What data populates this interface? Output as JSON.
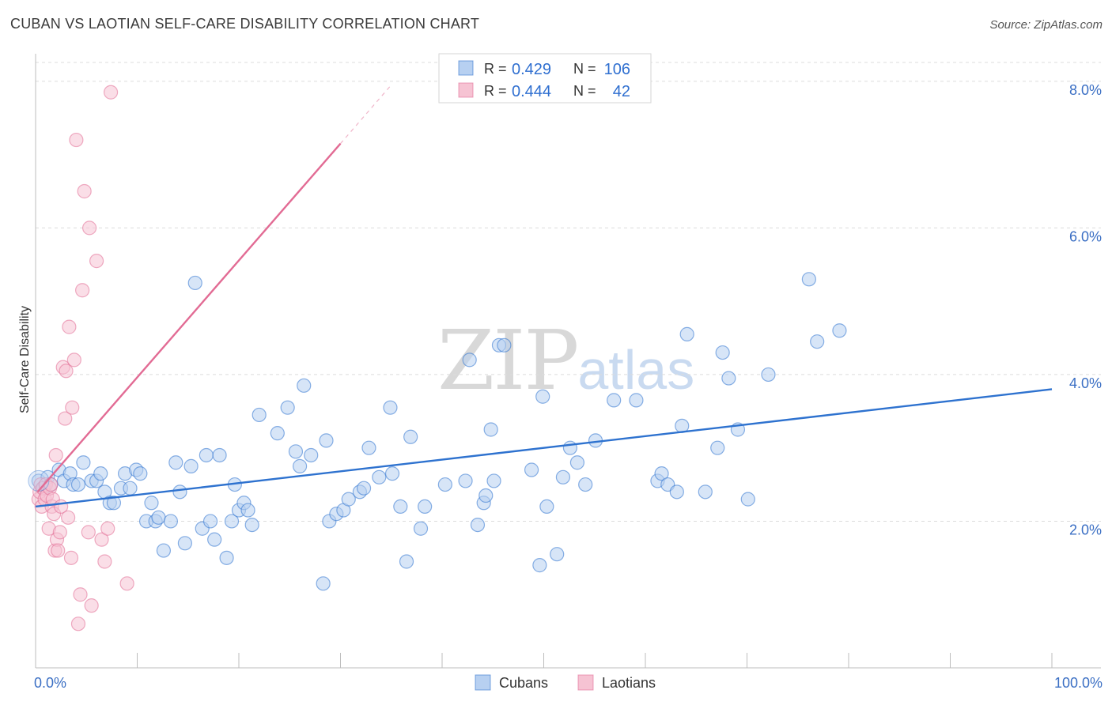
{
  "header": {
    "title": "CUBAN VS LAOTIAN SELF-CARE DISABILITY CORRELATION CHART",
    "source": "Source: ZipAtlas.com"
  },
  "watermark": {
    "zip": "ZIP",
    "atlas": "atlas"
  },
  "colors": {
    "cubans": "#2e72cf",
    "cubans_fill": "#b7d0f1",
    "laotians": "#e26b94",
    "laotians_fill": "#f6c3d3",
    "tick": "#3b6fc4"
  },
  "chart_data": {
    "type": "scatter",
    "xlabel": "",
    "ylabel": "Self-Care Disability",
    "xlim": [
      0,
      100
    ],
    "ylim": [
      0,
      8.3
    ],
    "grid": true,
    "legend_position": "top-center",
    "x_tick_labels": [
      "0.0%",
      "100.0%"
    ],
    "y_ticks": [
      {
        "value": 2,
        "label": "2.0%"
      },
      {
        "value": 4,
        "label": "4.0%"
      },
      {
        "value": 6,
        "label": "6.0%"
      },
      {
        "value": 8,
        "label": "8.0%"
      }
    ],
    "legend": [
      {
        "series": "Cubans",
        "r_label": "R = ",
        "r": "0.429",
        "n_label": "N = ",
        "n": "106"
      },
      {
        "series": "Laotians",
        "r_label": "R = ",
        "r": "0.444",
        "n_label": "N = ",
        "n": "42"
      }
    ],
    "series": [
      {
        "name": "Cubans",
        "trend": {
          "x": [
            0,
            100
          ],
          "y": [
            2.2,
            3.8
          ]
        },
        "points": [
          [
            0.3,
            2.55
          ],
          [
            0.8,
            2.45
          ],
          [
            1.2,
            2.6
          ],
          [
            1.5,
            2.5
          ],
          [
            2.3,
            2.7
          ],
          [
            2.8,
            2.55
          ],
          [
            3.4,
            2.65
          ],
          [
            3.7,
            2.5
          ],
          [
            4.2,
            2.5
          ],
          [
            4.7,
            2.8
          ],
          [
            5.5,
            2.55
          ],
          [
            6.0,
            2.55
          ],
          [
            6.4,
            2.65
          ],
          [
            6.8,
            2.4
          ],
          [
            7.3,
            2.25
          ],
          [
            7.7,
            2.25
          ],
          [
            8.4,
            2.45
          ],
          [
            8.8,
            2.65
          ],
          [
            9.3,
            2.45
          ],
          [
            9.9,
            2.7
          ],
          [
            10.3,
            2.65
          ],
          [
            10.9,
            2.0
          ],
          [
            11.4,
            2.25
          ],
          [
            11.8,
            2.0
          ],
          [
            12.1,
            2.05
          ],
          [
            12.6,
            1.6
          ],
          [
            13.3,
            2.0
          ],
          [
            13.8,
            2.8
          ],
          [
            14.2,
            2.4
          ],
          [
            14.7,
            1.7
          ],
          [
            15.3,
            2.75
          ],
          [
            15.7,
            5.25
          ],
          [
            16.4,
            1.9
          ],
          [
            16.8,
            2.9
          ],
          [
            17.2,
            2.0
          ],
          [
            17.6,
            1.75
          ],
          [
            18.1,
            2.9
          ],
          [
            18.8,
            1.5
          ],
          [
            19.3,
            2.0
          ],
          [
            19.6,
            2.5
          ],
          [
            20.0,
            2.15
          ],
          [
            20.5,
            2.25
          ],
          [
            20.9,
            2.15
          ],
          [
            21.3,
            1.95
          ],
          [
            22.0,
            3.45
          ],
          [
            23.8,
            3.2
          ],
          [
            24.8,
            3.55
          ],
          [
            25.6,
            2.95
          ],
          [
            26.0,
            2.75
          ],
          [
            26.4,
            3.85
          ],
          [
            27.1,
            2.9
          ],
          [
            28.3,
            1.15
          ],
          [
            28.6,
            3.1
          ],
          [
            28.9,
            2.0
          ],
          [
            29.6,
            2.1
          ],
          [
            30.3,
            2.15
          ],
          [
            30.8,
            2.3
          ],
          [
            31.9,
            2.4
          ],
          [
            32.3,
            2.45
          ],
          [
            32.8,
            3.0
          ],
          [
            33.8,
            2.6
          ],
          [
            34.9,
            3.55
          ],
          [
            35.1,
            2.65
          ],
          [
            35.9,
            2.2
          ],
          [
            36.5,
            1.45
          ],
          [
            36.9,
            3.15
          ],
          [
            37.9,
            1.9
          ],
          [
            38.3,
            2.2
          ],
          [
            40.3,
            2.5
          ],
          [
            42.3,
            2.55
          ],
          [
            42.7,
            4.2
          ],
          [
            43.5,
            1.95
          ],
          [
            44.1,
            2.25
          ],
          [
            44.3,
            2.35
          ],
          [
            44.8,
            3.25
          ],
          [
            45.1,
            2.55
          ],
          [
            45.6,
            4.4
          ],
          [
            46.1,
            4.4
          ],
          [
            48.8,
            2.7
          ],
          [
            49.6,
            1.4
          ],
          [
            49.9,
            3.7
          ],
          [
            50.3,
            2.2
          ],
          [
            51.3,
            1.55
          ],
          [
            51.9,
            2.6
          ],
          [
            52.6,
            3.0
          ],
          [
            53.3,
            2.8
          ],
          [
            54.1,
            2.5
          ],
          [
            55.1,
            3.1
          ],
          [
            56.9,
            3.65
          ],
          [
            59.1,
            3.65
          ],
          [
            61.2,
            2.55
          ],
          [
            61.6,
            2.65
          ],
          [
            62.2,
            2.5
          ],
          [
            63.1,
            2.4
          ],
          [
            63.6,
            3.3
          ],
          [
            64.1,
            4.55
          ],
          [
            65.9,
            2.4
          ],
          [
            67.1,
            3.0
          ],
          [
            67.6,
            4.3
          ],
          [
            68.2,
            3.95
          ],
          [
            69.1,
            3.25
          ],
          [
            70.1,
            2.3
          ],
          [
            72.1,
            4.0
          ],
          [
            76.1,
            5.3
          ],
          [
            76.9,
            4.45
          ],
          [
            79.1,
            4.6
          ]
        ]
      },
      {
        "name": "Laotians",
        "trend": {
          "x": [
            0.2,
            30.0
          ],
          "y": [
            2.4,
            7.15
          ]
        },
        "trend_dashed": {
          "x": [
            30.0,
            35.0
          ],
          "y": [
            7.15,
            7.95
          ]
        },
        "points": [
          [
            0.3,
            2.3
          ],
          [
            0.4,
            2.4
          ],
          [
            0.5,
            2.5
          ],
          [
            0.6,
            2.2
          ],
          [
            0.7,
            2.45
          ],
          [
            0.9,
            2.3
          ],
          [
            1.0,
            2.5
          ],
          [
            1.1,
            2.35
          ],
          [
            1.3,
            1.9
          ],
          [
            1.4,
            2.45
          ],
          [
            1.5,
            2.5
          ],
          [
            1.6,
            2.2
          ],
          [
            1.7,
            2.3
          ],
          [
            1.8,
            2.1
          ],
          [
            1.9,
            1.6
          ],
          [
            2.0,
            2.9
          ],
          [
            2.1,
            1.75
          ],
          [
            2.2,
            1.6
          ],
          [
            2.4,
            1.85
          ],
          [
            2.5,
            2.2
          ],
          [
            2.7,
            4.1
          ],
          [
            2.9,
            3.4
          ],
          [
            3.0,
            4.05
          ],
          [
            3.2,
            2.05
          ],
          [
            3.3,
            4.65
          ],
          [
            3.5,
            1.5
          ],
          [
            3.6,
            3.55
          ],
          [
            3.8,
            4.2
          ],
          [
            4.0,
            7.2
          ],
          [
            4.2,
            0.6
          ],
          [
            4.4,
            1.0
          ],
          [
            4.6,
            5.15
          ],
          [
            4.8,
            6.5
          ],
          [
            5.2,
            1.85
          ],
          [
            5.3,
            6.0
          ],
          [
            5.5,
            0.85
          ],
          [
            6.0,
            5.55
          ],
          [
            6.5,
            1.75
          ],
          [
            6.8,
            1.45
          ],
          [
            7.1,
            1.9
          ],
          [
            7.4,
            7.85
          ],
          [
            9.0,
            1.15
          ]
        ]
      }
    ]
  }
}
